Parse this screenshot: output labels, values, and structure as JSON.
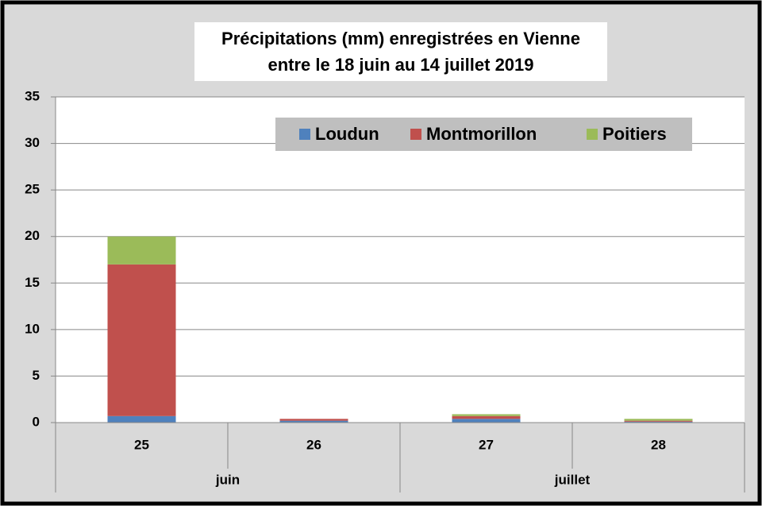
{
  "chart_data": {
    "type": "stacked_bar",
    "title": [
      "Précipitations (mm) enregistrées en Vienne",
      "entre le 18 juin au 14 juillet 2019"
    ],
    "categories": [
      "25",
      "26",
      "27",
      "28"
    ],
    "groups": [
      {
        "name": "juin",
        "size": 2
      },
      {
        "name": "juillet",
        "size": 2
      }
    ],
    "series": [
      {
        "name": "Loudun",
        "color": "#4f81bd",
        "values": [
          0.7,
          0.2,
          0.4,
          0.1
        ]
      },
      {
        "name": "Montmorillon",
        "color": "#c0504d",
        "values": [
          16.3,
          0.2,
          0.3,
          0.1
        ]
      },
      {
        "name": "Poitiers",
        "color": "#9bbb59",
        "values": [
          3,
          0,
          0.2,
          0.2
        ]
      }
    ],
    "ylim": [
      0,
      35
    ],
    "yticks": [
      0,
      5,
      10,
      15,
      20,
      25,
      30,
      35
    ],
    "grid": true,
    "legend": "top-right"
  }
}
